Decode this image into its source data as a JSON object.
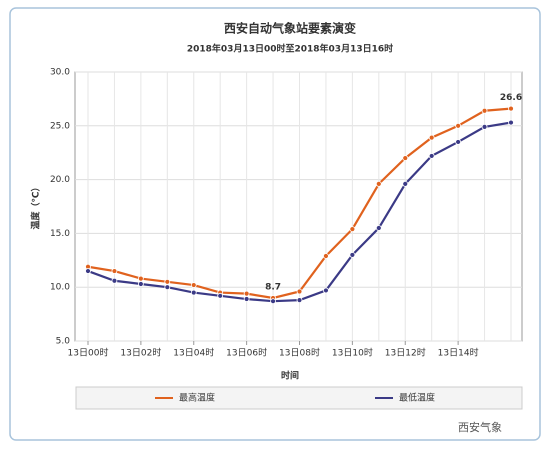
{
  "chart_data": {
    "type": "line",
    "title": "西安自动气象站要素演变",
    "subtitle": "2018年03月13日00时至2018年03月13日16时",
    "x_label": "时间",
    "y_label": "温度（℃）",
    "categories": [
      "13日00时",
      null,
      "13日02时",
      null,
      "13日04时",
      null,
      "13日06时",
      null,
      "13日08时",
      null,
      "13日10时",
      null,
      "13日12时",
      null,
      "13日14时",
      null,
      null
    ],
    "series": [
      {
        "name": "最高温度",
        "color": "#e0621e",
        "values": [
          11.9,
          11.5,
          10.8,
          10.5,
          10.2,
          9.5,
          9.4,
          9.0,
          9.6,
          12.9,
          15.4,
          19.6,
          22.0,
          23.9,
          25.0,
          26.4,
          26.6
        ]
      },
      {
        "name": "最低温度",
        "color": "#3b3a86",
        "values": [
          11.5,
          10.6,
          10.3,
          10.0,
          9.5,
          9.2,
          8.9,
          8.7,
          8.8,
          9.7,
          13.0,
          15.5,
          19.6,
          22.2,
          23.5,
          24.9,
          25.3
        ]
      }
    ],
    "annotations": [
      "26.6",
      "8.7"
    ],
    "ylim": [
      5,
      30
    ],
    "yticks": [
      {
        "value": 5,
        "label": "5.0"
      },
      {
        "value": 10,
        "label": "10.0"
      },
      {
        "value": 15,
        "label": "15.0"
      },
      {
        "value": 20,
        "label": "20.0"
      },
      {
        "value": 25,
        "label": "25.0"
      },
      {
        "value": 30,
        "label": "30.0"
      }
    ],
    "grid": true,
    "legend": "bottom",
    "watermark": "西安气象"
  }
}
